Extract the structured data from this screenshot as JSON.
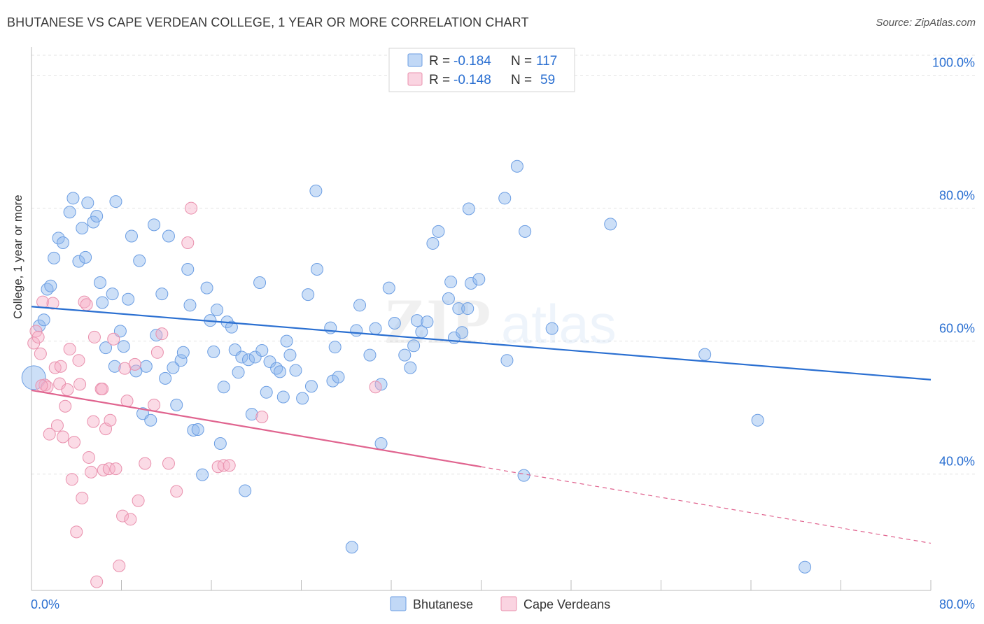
{
  "header": {
    "title": "BHUTANESE VS CAPE VERDEAN COLLEGE, 1 YEAR OR MORE CORRELATION CHART",
    "source": "Source: ZipAtlas.com"
  },
  "watermark": "ZIPatlas",
  "colors": {
    "blue": "#6c9ee3",
    "blue_fill": "rgba(142,184,238,0.45)",
    "blue_line": "#2a6fd1",
    "pink": "#e990ad",
    "pink_fill": "rgba(246,176,200,0.45)",
    "pink_line": "#e0648f",
    "value_text": "#2a6fd1",
    "grid": "#dddddd"
  },
  "legend": {
    "items": [
      {
        "r_label": "R = ",
        "r_value": "-0.184",
        "n_label": "N = ",
        "n_value": "117"
      },
      {
        "r_label": "R = ",
        "r_value": "-0.148",
        "n_label": "N = ",
        "n_value": "59"
      }
    ],
    "bottom": [
      "Bhutanese",
      "Cape Verdeans"
    ]
  },
  "chart_data": {
    "type": "scatter",
    "title": "BHUTANESE VS CAPE VERDEAN COLLEGE, 1 YEAR OR MORE CORRELATION CHART",
    "xlabel": "",
    "ylabel": "College, 1 year or more",
    "xlim": [
      0,
      80
    ],
    "ylim": [
      22.5,
      103
    ],
    "x_tick_labels": [
      "0.0%",
      "80.0%"
    ],
    "y_tick_labels": [
      "100.0%",
      "80.0%",
      "60.0%",
      "40.0%"
    ],
    "y_ticks": [
      100,
      80,
      60,
      40
    ],
    "grid": true,
    "legend_position": "top-center",
    "series": [
      {
        "name": "Bhutanese",
        "color": "#6c9ee3",
        "r": -0.184,
        "n": 117,
        "trend": {
          "x": [
            0,
            80
          ],
          "y": [
            65.2,
            54.2
          ],
          "dashed_from": null
        },
        "points": [
          [
            0.2,
            54.5
          ],
          [
            0.7,
            62.3
          ],
          [
            1.1,
            63.2
          ],
          [
            1.4,
            67.8
          ],
          [
            1.7,
            68.3
          ],
          [
            2.0,
            72.5
          ],
          [
            2.4,
            75.5
          ],
          [
            2.8,
            74.8
          ],
          [
            3.4,
            79.4
          ],
          [
            3.7,
            81.5
          ],
          [
            4.2,
            72.0
          ],
          [
            4.5,
            77.0
          ],
          [
            4.8,
            72.6
          ],
          [
            5.0,
            80.8
          ],
          [
            5.5,
            77.9
          ],
          [
            5.8,
            78.8
          ],
          [
            6.1,
            68.8
          ],
          [
            6.3,
            65.8
          ],
          [
            6.6,
            59.0
          ],
          [
            7.2,
            67.1
          ],
          [
            7.4,
            56.2
          ],
          [
            7.5,
            81.0
          ],
          [
            7.9,
            61.5
          ],
          [
            8.2,
            59.2
          ],
          [
            8.6,
            66.3
          ],
          [
            8.9,
            75.8
          ],
          [
            9.3,
            55.5
          ],
          [
            9.6,
            72.1
          ],
          [
            9.9,
            49.1
          ],
          [
            10.2,
            56.2
          ],
          [
            10.6,
            48.1
          ],
          [
            10.9,
            77.5
          ],
          [
            11.1,
            60.9
          ],
          [
            11.6,
            67.1
          ],
          [
            11.9,
            54.4
          ],
          [
            12.2,
            75.8
          ],
          [
            12.6,
            56.0
          ],
          [
            12.9,
            50.4
          ],
          [
            13.3,
            57.1
          ],
          [
            13.5,
            58.3
          ],
          [
            13.9,
            70.8
          ],
          [
            14.1,
            65.4
          ],
          [
            14.4,
            46.6
          ],
          [
            14.8,
            46.7
          ],
          [
            15.2,
            39.9
          ],
          [
            15.6,
            68.0
          ],
          [
            15.9,
            63.1
          ],
          [
            16.2,
            58.4
          ],
          [
            16.5,
            64.7
          ],
          [
            16.8,
            44.6
          ],
          [
            17.1,
            53.1
          ],
          [
            17.4,
            62.9
          ],
          [
            17.8,
            62.1
          ],
          [
            18.1,
            58.7
          ],
          [
            18.4,
            55.3
          ],
          [
            18.7,
            57.6
          ],
          [
            19.0,
            37.5
          ],
          [
            19.3,
            57.2
          ],
          [
            19.6,
            49.0
          ],
          [
            19.9,
            57.6
          ],
          [
            20.3,
            68.8
          ],
          [
            20.5,
            58.6
          ],
          [
            20.9,
            52.3
          ],
          [
            21.2,
            56.9
          ],
          [
            21.8,
            55.9
          ],
          [
            22.1,
            55.4
          ],
          [
            22.4,
            51.6
          ],
          [
            22.7,
            60.0
          ],
          [
            23.0,
            57.9
          ],
          [
            23.5,
            55.6
          ],
          [
            24.1,
            51.4
          ],
          [
            24.6,
            67.0
          ],
          [
            24.9,
            53.2
          ],
          [
            25.3,
            82.6
          ],
          [
            25.4,
            70.8
          ],
          [
            26.6,
            62.0
          ],
          [
            26.8,
            54.0
          ],
          [
            27.0,
            59.1
          ],
          [
            27.3,
            54.6
          ],
          [
            28.5,
            29.0
          ],
          [
            28.9,
            61.6
          ],
          [
            29.2,
            65.4
          ],
          [
            30.1,
            57.9
          ],
          [
            30.6,
            61.9
          ],
          [
            31.1,
            53.5
          ],
          [
            31.1,
            44.6
          ],
          [
            31.8,
            68.0
          ],
          [
            32.3,
            62.7
          ],
          [
            33.2,
            57.9
          ],
          [
            33.7,
            56.0
          ],
          [
            34.0,
            59.3
          ],
          [
            34.3,
            63.1
          ],
          [
            34.7,
            61.4
          ],
          [
            35.2,
            62.9
          ],
          [
            35.7,
            74.7
          ],
          [
            36.2,
            76.5
          ],
          [
            37.1,
            66.4
          ],
          [
            37.3,
            68.9
          ],
          [
            37.6,
            60.5
          ],
          [
            38.0,
            64.9
          ],
          [
            38.3,
            61.3
          ],
          [
            38.8,
            64.9
          ],
          [
            39.1,
            68.7
          ],
          [
            39.8,
            69.3
          ],
          [
            42.1,
            81.5
          ],
          [
            42.3,
            57.1
          ],
          [
            43.2,
            86.3
          ],
          [
            43.9,
            76.5
          ],
          [
            43.8,
            39.8
          ],
          [
            46.3,
            61.9
          ],
          [
            51.5,
            77.6
          ],
          [
            59.9,
            58.0
          ],
          [
            64.6,
            48.1
          ],
          [
            68.8,
            26.0
          ],
          [
            38.9,
            79.9
          ]
        ]
      },
      {
        "name": "Cape Verdeans",
        "color": "#e990ad",
        "r": -0.148,
        "n": 59,
        "trend": {
          "x": [
            0,
            80
          ],
          "y": [
            52.6,
            29.6
          ],
          "dashed_from": 40.0
        },
        "points": [
          [
            0.2,
            59.7
          ],
          [
            0.4,
            61.5
          ],
          [
            0.6,
            60.6
          ],
          [
            0.8,
            58.1
          ],
          [
            1.0,
            65.9
          ],
          [
            1.2,
            53.4
          ],
          [
            1.4,
            53.1
          ],
          [
            1.6,
            46.0
          ],
          [
            1.9,
            65.7
          ],
          [
            2.1,
            56.0
          ],
          [
            2.3,
            47.3
          ],
          [
            2.5,
            53.6
          ],
          [
            2.6,
            56.2
          ],
          [
            2.8,
            45.6
          ],
          [
            3.0,
            50.2
          ],
          [
            3.2,
            52.7
          ],
          [
            3.4,
            58.8
          ],
          [
            3.6,
            39.2
          ],
          [
            3.8,
            44.8
          ],
          [
            4.0,
            31.3
          ],
          [
            4.2,
            57.1
          ],
          [
            4.3,
            53.5
          ],
          [
            4.5,
            36.4
          ],
          [
            4.7,
            65.9
          ],
          [
            4.9,
            65.5
          ],
          [
            5.1,
            42.5
          ],
          [
            5.3,
            40.3
          ],
          [
            5.5,
            47.9
          ],
          [
            5.6,
            60.6
          ],
          [
            5.8,
            23.8
          ],
          [
            6.2,
            52.8
          ],
          [
            6.4,
            40.6
          ],
          [
            6.6,
            46.8
          ],
          [
            6.9,
            40.8
          ],
          [
            7.0,
            48.1
          ],
          [
            7.3,
            60.3
          ],
          [
            7.5,
            40.8
          ],
          [
            7.8,
            26.2
          ],
          [
            8.1,
            33.7
          ],
          [
            8.3,
            55.9
          ],
          [
            8.5,
            51.0
          ],
          [
            8.8,
            33.2
          ],
          [
            9.2,
            56.5
          ],
          [
            9.5,
            36.0
          ],
          [
            10.1,
            41.6
          ],
          [
            10.9,
            50.4
          ],
          [
            11.2,
            58.3
          ],
          [
            11.6,
            61.1
          ],
          [
            12.2,
            41.6
          ],
          [
            12.9,
            37.4
          ],
          [
            13.9,
            74.8
          ],
          [
            14.2,
            80.0
          ],
          [
            16.6,
            41.1
          ],
          [
            17.1,
            41.3
          ],
          [
            17.6,
            41.3
          ],
          [
            20.5,
            48.6
          ],
          [
            30.6,
            53.1
          ],
          [
            0.9,
            53.3
          ],
          [
            6.3,
            52.8
          ]
        ]
      }
    ]
  }
}
